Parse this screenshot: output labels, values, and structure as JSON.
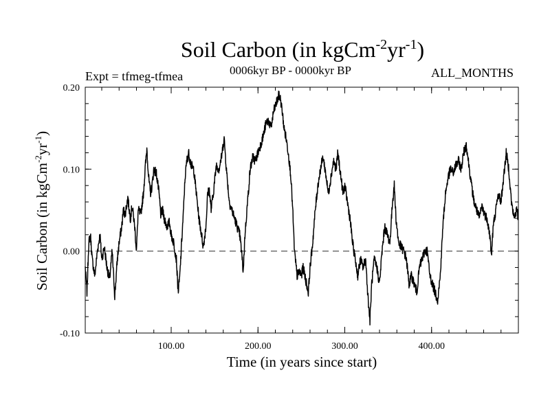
{
  "chart_data": {
    "type": "line",
    "title": "Soil Carbon (in kgCm",
    "title_exp1": "-2",
    "title_mid": "yr",
    "title_exp2": "-1",
    "title_end": ")",
    "experiment": "Expt = tfmeg-tfmea",
    "period": "0006kyr BP - 0000kyr BP",
    "months": "ALL_MONTHS",
    "xlabel": "Time (in years since start)",
    "ylabel": "Soil Carbon (in kgCm",
    "ylabel_exp1": "-2",
    "ylabel_mid": "yr",
    "ylabel_exp2": "-1",
    "ylabel_end": ")",
    "xlim": [
      1,
      500
    ],
    "ylim": [
      -0.1,
      0.2
    ],
    "xticks": [
      100,
      200,
      300,
      400
    ],
    "xtick_labels": [
      "100.00",
      "200.00",
      "300.00",
      "400.00"
    ],
    "yticks": [
      -0.1,
      0.0,
      0.1,
      0.2
    ],
    "ytick_labels": [
      "-0.10",
      "0.00",
      "0.10",
      "0.20"
    ],
    "reference_line": 0.0,
    "series": [
      {
        "name": "Soil Carbon",
        "x": [
          1,
          3,
          5,
          7,
          9,
          12,
          15,
          18,
          20,
          23,
          26,
          29,
          32,
          35,
          38,
          40,
          43,
          45,
          47,
          50,
          53,
          55,
          58,
          60,
          62,
          65,
          68,
          70,
          72,
          74,
          76,
          78,
          80,
          83,
          86,
          88,
          90,
          92,
          95,
          98,
          100,
          103,
          106,
          108,
          110,
          112,
          114,
          116,
          118,
          120,
          123,
          126,
          129,
          132,
          135,
          137,
          140,
          142,
          144,
          146,
          149,
          152,
          155,
          158,
          161,
          164,
          167,
          170,
          173,
          176,
          179,
          181,
          183,
          185,
          188,
          191,
          194,
          197,
          200,
          203,
          206,
          209,
          212,
          215,
          218,
          221,
          224,
          226,
          228,
          230,
          232,
          235,
          238,
          240,
          242,
          245,
          248,
          250,
          252,
          254,
          256,
          258,
          260,
          263,
          266,
          269,
          272,
          275,
          278,
          281,
          284,
          287,
          290,
          292,
          295,
          298,
          300,
          303,
          306,
          309,
          312,
          315,
          318,
          321,
          324,
          327,
          329,
          331,
          334,
          337,
          340,
          343,
          346,
          349,
          352,
          355,
          357,
          359,
          362,
          365,
          368,
          371,
          374,
          377,
          380,
          383,
          386,
          389,
          392,
          395,
          398,
          401,
          404,
          407,
          410,
          413,
          416,
          419,
          422,
          425,
          428,
          431,
          434,
          437,
          440,
          443,
          446,
          449,
          452,
          455,
          458,
          461,
          464,
          467,
          469,
          471,
          474,
          477,
          480,
          483,
          486,
          489,
          492,
          495,
          498,
          500
        ],
        "y": [
          -0.02,
          -0.05,
          0.01,
          0.02,
          -0.01,
          -0.03,
          0.0,
          0.02,
          -0.01,
          0.005,
          -0.02,
          -0.035,
          0.0,
          -0.055,
          -0.01,
          0.01,
          0.03,
          0.05,
          0.045,
          0.065,
          0.04,
          0.055,
          0.03,
          0.0,
          0.05,
          0.045,
          0.07,
          0.1,
          0.125,
          0.09,
          0.07,
          0.08,
          0.1,
          0.095,
          0.07,
          0.045,
          0.05,
          0.04,
          0.03,
          0.035,
          0.02,
          0.01,
          -0.01,
          -0.05,
          -0.03,
          0.01,
          0.045,
          0.09,
          0.11,
          0.12,
          0.105,
          0.1,
          0.07,
          0.04,
          0.02,
          0.005,
          0.03,
          0.07,
          0.075,
          0.05,
          0.075,
          0.105,
          0.1,
          0.115,
          0.138,
          0.095,
          0.06,
          0.05,
          0.04,
          0.03,
          0.02,
          0.0,
          -0.025,
          0.02,
          0.06,
          0.1,
          0.115,
          0.11,
          0.12,
          0.13,
          0.14,
          0.155,
          0.16,
          0.15,
          0.17,
          0.18,
          0.19,
          0.185,
          0.17,
          0.15,
          0.14,
          0.12,
          0.09,
          0.05,
          0.0,
          -0.03,
          -0.025,
          -0.03,
          -0.02,
          -0.03,
          -0.04,
          -0.05,
          -0.02,
          0.01,
          0.05,
          0.08,
          0.1,
          0.115,
          0.095,
          0.07,
          0.09,
          0.11,
          0.1,
          0.12,
          0.095,
          0.07,
          0.08,
          0.06,
          0.04,
          0.01,
          -0.01,
          -0.03,
          -0.01,
          -0.02,
          -0.01,
          -0.06,
          -0.085,
          -0.04,
          -0.01,
          -0.02,
          -0.04,
          0.0,
          0.03,
          0.02,
          0.01,
          0.06,
          0.08,
          0.04,
          0.01,
          0.005,
          0.0,
          -0.01,
          -0.04,
          -0.03,
          -0.04,
          -0.05,
          -0.02,
          -0.01,
          0.0,
          0.0,
          -0.03,
          -0.04,
          -0.05,
          -0.06,
          -0.03,
          0.03,
          0.07,
          0.09,
          0.1,
          0.095,
          0.105,
          0.11,
          0.1,
          0.12,
          0.13,
          0.105,
          0.08,
          0.06,
          0.05,
          0.04,
          0.055,
          0.045,
          0.04,
          0.02,
          -0.005,
          0.03,
          0.05,
          0.07,
          0.06,
          0.09,
          0.12,
          0.1,
          0.06,
          0.04,
          0.05,
          0.04
        ]
      }
    ]
  }
}
